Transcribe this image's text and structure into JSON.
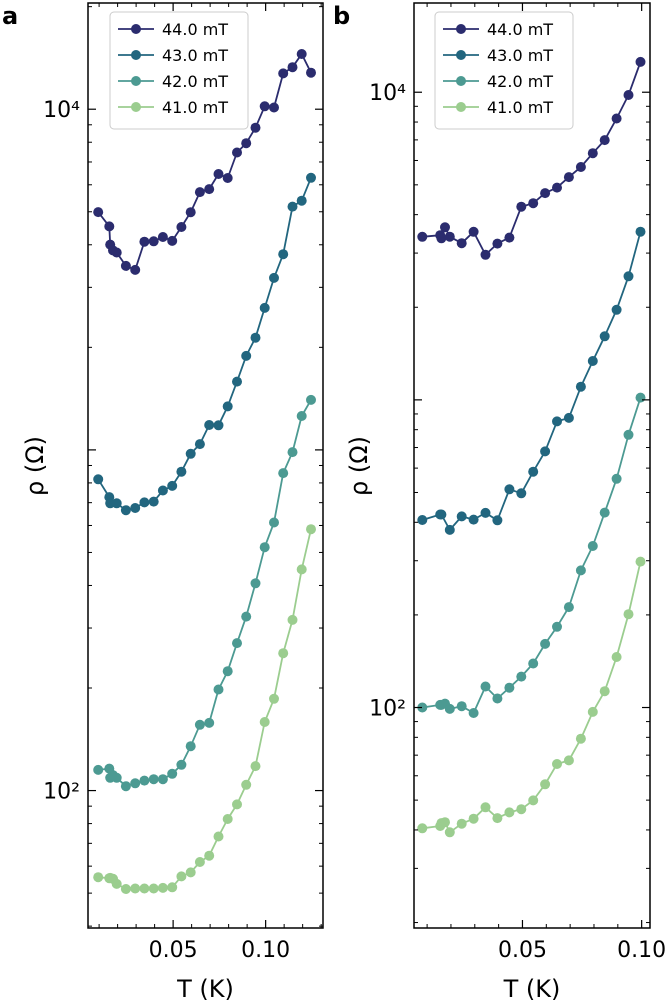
{
  "chart_data": [
    {
      "panel": "a",
      "type": "line",
      "xscale": "linear",
      "yscale": "log",
      "xlabel": "T (K)",
      "ylabel": "ρ (Ω)",
      "xlim": [
        0.004,
        0.131
      ],
      "ylim": [
        39.5,
        20500
      ],
      "xticks": [
        0.05,
        0.1
      ],
      "xtick_labels": [
        "0.05",
        "0.10"
      ],
      "yticks_major": [
        100,
        10000
      ],
      "ytick_labels": [
        "10²",
        "10⁴"
      ],
      "legend": "top-left",
      "series": [
        {
          "name": "44.0 mT",
          "color": "#2b2c6e",
          "x": [
            0.0095,
            0.0155,
            0.016,
            0.0175,
            0.0195,
            0.0245,
            0.0295,
            0.0345,
            0.0395,
            0.0445,
            0.0495,
            0.0545,
            0.0595,
            0.0645,
            0.0695,
            0.0745,
            0.0795,
            0.0845,
            0.0895,
            0.0945,
            0.0995,
            0.1045,
            0.1095,
            0.1145,
            0.1195,
            0.1245
          ],
          "y": [
            4987,
            4529,
            4005,
            3852,
            3797,
            3469,
            3376,
            4083,
            4095,
            4215,
            4107,
            4511,
            4984,
            5711,
            5826,
            6453,
            6282,
            7463,
            7947,
            8823,
            10201,
            10114,
            12740,
            13280,
            14520,
            12800
          ]
        },
        {
          "name": "43.0 mT",
          "color": "#22667f",
          "x": [
            0.0095,
            0.0155,
            0.016,
            0.0195,
            0.0245,
            0.0295,
            0.0345,
            0.0395,
            0.0445,
            0.0495,
            0.0545,
            0.0595,
            0.0645,
            0.0695,
            0.0745,
            0.0795,
            0.0845,
            0.0895,
            0.0945,
            0.0995,
            0.1045,
            0.1095,
            0.1145,
            0.1195,
            0.1245
          ],
          "y": [
            820,
            727,
            697,
            697,
            665,
            675,
            701,
            705,
            760,
            784,
            863,
            974,
            1040,
            1183,
            1181,
            1342,
            1587,
            1888,
            2134,
            2611,
            3198,
            3753,
            5176,
            5389,
            6290
          ]
        },
        {
          "name": "42.0 mT",
          "color": "#4c9a92",
          "x": [
            0.0095,
            0.0155,
            0.016,
            0.0175,
            0.0195,
            0.0245,
            0.0295,
            0.0345,
            0.0395,
            0.0445,
            0.0495,
            0.0545,
            0.0595,
            0.0645,
            0.0695,
            0.0745,
            0.0795,
            0.0845,
            0.0895,
            0.0945,
            0.0995,
            0.1045,
            0.1095,
            0.1145,
            0.1195,
            0.1245
          ],
          "y": [
            115,
            116,
            109,
            111,
            109,
            103,
            105,
            107,
            108,
            108,
            112,
            119,
            135,
            156,
            158,
            198,
            224,
            271,
            324,
            406,
            518,
            612,
            855,
            985,
            1257,
            1402
          ]
        },
        {
          "name": "41.0 mT",
          "color": "#9bcd8f",
          "x": [
            0.0095,
            0.0155,
            0.016,
            0.0175,
            0.0195,
            0.0245,
            0.0295,
            0.0345,
            0.0395,
            0.0445,
            0.0495,
            0.0545,
            0.0595,
            0.0645,
            0.0695,
            0.0745,
            0.0795,
            0.0845,
            0.0895,
            0.0945,
            0.0995,
            0.1045,
            0.1095,
            0.1145,
            0.1195,
            0.1245
          ],
          "y": [
            55.7,
            55.3,
            55.4,
            55.1,
            53.2,
            51.4,
            51.6,
            51.6,
            51.6,
            51.8,
            52.0,
            56.0,
            57.5,
            61.7,
            64.4,
            73.3,
            82.5,
            91.1,
            104,
            118,
            159,
            186,
            253,
            317,
            446,
            585
          ]
        }
      ]
    },
    {
      "panel": "b",
      "type": "line",
      "xscale": "linear",
      "yscale": "log",
      "xlabel": "T (K)",
      "ylabel": "ρ (Ω)",
      "xlim": [
        0.0045,
        0.1035
      ],
      "ylim": [
        19.2,
        19500
      ],
      "xticks": [
        0.05,
        0.1
      ],
      "xtick_labels": [
        "0.05",
        "0.10"
      ],
      "yticks_major": [
        100,
        10000
      ],
      "ytick_labels": [
        "10²",
        "10⁴"
      ],
      "legend": "top-left",
      "series": [
        {
          "name": "44.0 mT",
          "color": "#2b2c6e",
          "x": [
            0.008,
            0.0155,
            0.016,
            0.0175,
            0.0195,
            0.0245,
            0.0295,
            0.0345,
            0.0395,
            0.0445,
            0.0495,
            0.0545,
            0.0595,
            0.0645,
            0.0695,
            0.0745,
            0.0795,
            0.0845,
            0.0895,
            0.0945,
            0.0995
          ],
          "y": [
            3390,
            3431,
            3350,
            3638,
            3392,
            3230,
            3517,
            2962,
            3221,
            3368,
            4244,
            4357,
            4700,
            4898,
            5299,
            5713,
            6337,
            6987,
            8215,
            9796,
            12550
          ]
        },
        {
          "name": "43.0 mT",
          "color": "#22667f",
          "x": [
            0.008,
            0.0155,
            0.016,
            0.0195,
            0.0245,
            0.0295,
            0.0345,
            0.0395,
            0.0445,
            0.0495,
            0.0545,
            0.0595,
            0.0645,
            0.0695,
            0.0745,
            0.0795,
            0.0845,
            0.0895,
            0.0945,
            0.0995
          ],
          "y": [
            407,
            424,
            424,
            378,
            418,
            408,
            429,
            406,
            512,
            497,
            584,
            680,
            851,
            874,
            1104,
            1338,
            1609,
            1963,
            2522,
            3520
          ]
        },
        {
          "name": "42.0 mT",
          "color": "#4c9a92",
          "x": [
            0.008,
            0.0155,
            0.016,
            0.0175,
            0.0195,
            0.0245,
            0.0295,
            0.0345,
            0.0395,
            0.0445,
            0.0495,
            0.0545,
            0.0595,
            0.0645,
            0.0695,
            0.0745,
            0.0795,
            0.0845,
            0.0895,
            0.0945,
            0.0995
          ],
          "y": [
            100,
            102,
            102,
            103,
            99,
            101,
            96,
            117,
            107,
            116,
            126,
            139,
            161,
            183,
            212,
            279,
            335,
            430,
            554,
            770,
            1017
          ]
        },
        {
          "name": "41.0 mT",
          "color": "#9bcd8f",
          "x": [
            0.008,
            0.0155,
            0.016,
            0.0175,
            0.0195,
            0.0245,
            0.0295,
            0.0345,
            0.0395,
            0.0445,
            0.0495,
            0.0545,
            0.0595,
            0.0645,
            0.0695,
            0.0745,
            0.0795,
            0.0845,
            0.0895,
            0.0945,
            0.0995
          ],
          "y": [
            40.5,
            41.2,
            42.1,
            42.4,
            39.3,
            41.9,
            43.5,
            47.4,
            43.7,
            45.6,
            46.7,
            49.9,
            56.3,
            65.5,
            67.3,
            79.2,
            96.8,
            113,
            146,
            201,
            298
          ]
        }
      ]
    }
  ]
}
